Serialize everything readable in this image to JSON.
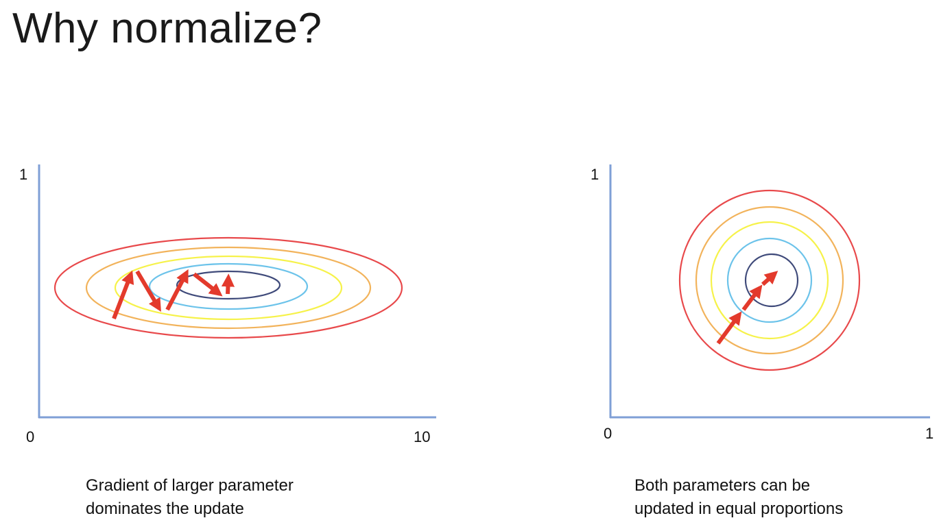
{
  "slide": {
    "title": "Why normalize?"
  },
  "panels": [
    {
      "id": "left",
      "axis": {
        "y_max_label": "1",
        "x_min_label": "0",
        "x_max_label": "10"
      },
      "caption": [
        "Gradient of larger parameter",
        "dominates the update"
      ],
      "contours": [
        "red",
        "orange",
        "yellow",
        "light-blue",
        "dark-navy"
      ],
      "path": "zig-zag steps toward the center"
    },
    {
      "id": "right",
      "axis": {
        "y_max_label": "1",
        "x_min_label": "0",
        "x_max_label": "1"
      },
      "caption": [
        "Both parameters can be",
        "updated in equal proportions"
      ],
      "contours": [
        "red",
        "orange",
        "yellow",
        "light-blue",
        "dark-navy"
      ],
      "path": "straight steps toward the center"
    }
  ],
  "colors": {
    "axis": "#7f9fd6",
    "contour_red": "#e8494b",
    "contour_orange": "#f2b35b",
    "contour_yellow": "#f6f24a",
    "contour_light_blue": "#6cc3ea",
    "contour_dark_navy": "#3f4a7a",
    "arrow": "#e33a2c"
  }
}
